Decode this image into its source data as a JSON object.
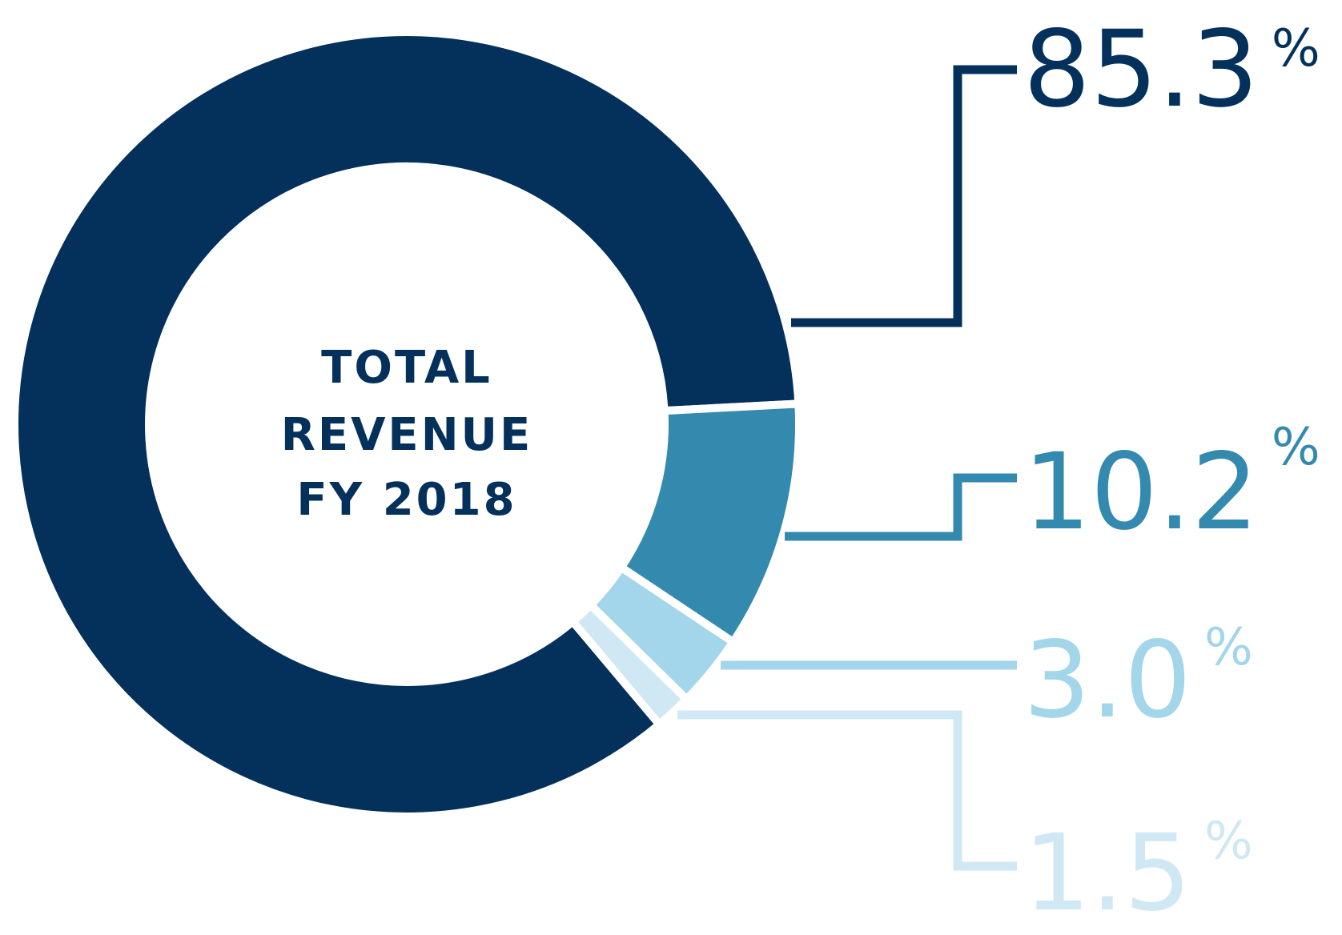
{
  "chart_data": {
    "type": "pie",
    "title_lines": [
      "TOTAL",
      "REVENUE",
      "FY 2018"
    ],
    "slices": [
      {
        "value": 85.3,
        "number_text": "85.3",
        "percent_text": "%",
        "color": "#04315b"
      },
      {
        "value": 10.2,
        "number_text": "10.2",
        "percent_text": "%",
        "color": "#348aae"
      },
      {
        "value": 3.0,
        "number_text": "3.0",
        "percent_text": "%",
        "color": "#a3d6ea"
      },
      {
        "value": 1.5,
        "number_text": "1.5",
        "percent_text": "%",
        "color": "#cfe8f3"
      }
    ],
    "title_color": "#04315b",
    "background_color": "#ffffff",
    "hole": true,
    "labels_position": "right",
    "legend": "none",
    "grid": false
  }
}
